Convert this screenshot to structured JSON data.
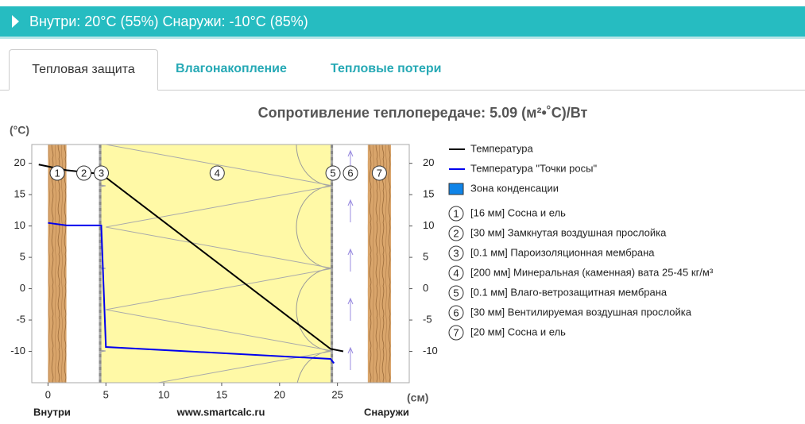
{
  "header": {
    "title": "Внутри: 20°C (55%) Снаружи: -10°C (85%)"
  },
  "tabs": [
    "Тепловая защита",
    "Влагонакопление",
    "Тепловые потери"
  ],
  "chart_data": {
    "type": "line",
    "title": "Сопротивление теплопередаче: 5.09 (м²•˚C)/Вт",
    "y_label": "(°C)",
    "x_label": "(см)",
    "x_labels": {
      "left": "Внутри",
      "center": "www.smartcalc.ru",
      "right": "Снаружи"
    },
    "xlim": [
      -1.4,
      31.2
    ],
    "xticks": [
      0,
      5,
      10,
      15,
      20,
      25
    ],
    "ylim": [
      -15,
      23
    ],
    "yticks": [
      -10,
      -5,
      0,
      5,
      10,
      15,
      20
    ],
    "y2lim": [
      -15,
      23
    ],
    "y2ticks": [
      -10,
      -5,
      0,
      5,
      10,
      15,
      20
    ],
    "series": [
      {
        "name": "Температура",
        "color": "#000000",
        "x": [
          -0.8,
          1.6,
          4.6,
          24.4,
          25.5
        ],
        "values": [
          19.8,
          18.9,
          18.3,
          -9.6,
          -10.0
        ]
      },
      {
        "name": "Температура \"Точки росы\"",
        "color": "#0000ee",
        "x": [
          0,
          1.6,
          4.6,
          5.0,
          24.4,
          24.7
        ],
        "values": [
          10.5,
          10.1,
          10.1,
          -9.3,
          -11.2,
          -11.9
        ]
      }
    ],
    "condensation_zone": {
      "name": "Зона конденсации",
      "color": "#0f84e8"
    },
    "layers": [
      {
        "number": "1",
        "label": "[16 мм] Сосна и ель",
        "start": 0,
        "end": 1.6,
        "color": "#d9a56b",
        "pattern": "wood"
      },
      {
        "number": "2",
        "label": "[30 мм] Замкнутая воздушная прослойка",
        "start": 1.6,
        "end": 4.6,
        "color": "#ffffff",
        "pattern": "air"
      },
      {
        "number": "3",
        "label": "[0.1 мм] Пароизоляционная мембрана",
        "start": 4.6,
        "end": 4.61,
        "color": "#a8a8a8",
        "pattern": "membrane"
      },
      {
        "number": "4",
        "label": "[200 мм] Минеральная (каменная) вата 25-45 кг/м³",
        "start": 4.61,
        "end": 24.61,
        "color": "#fff9a6",
        "pattern": "wool"
      },
      {
        "number": "5",
        "label": "[0.1 мм] Влаго-ветрозащитная мембрана",
        "start": 24.61,
        "end": 24.62,
        "color": "#a8a8a8",
        "pattern": "membrane"
      },
      {
        "number": "6",
        "label": "[30 мм] Вентилируемая воздушная прослойка",
        "start": 24.62,
        "end": 27.62,
        "color": "#ffffff",
        "pattern": "ventilated"
      },
      {
        "number": "7",
        "label": "[20 мм] Сосна и ель",
        "start": 27.62,
        "end": 29.62,
        "color": "#d9a56b",
        "pattern": "wood"
      }
    ]
  }
}
